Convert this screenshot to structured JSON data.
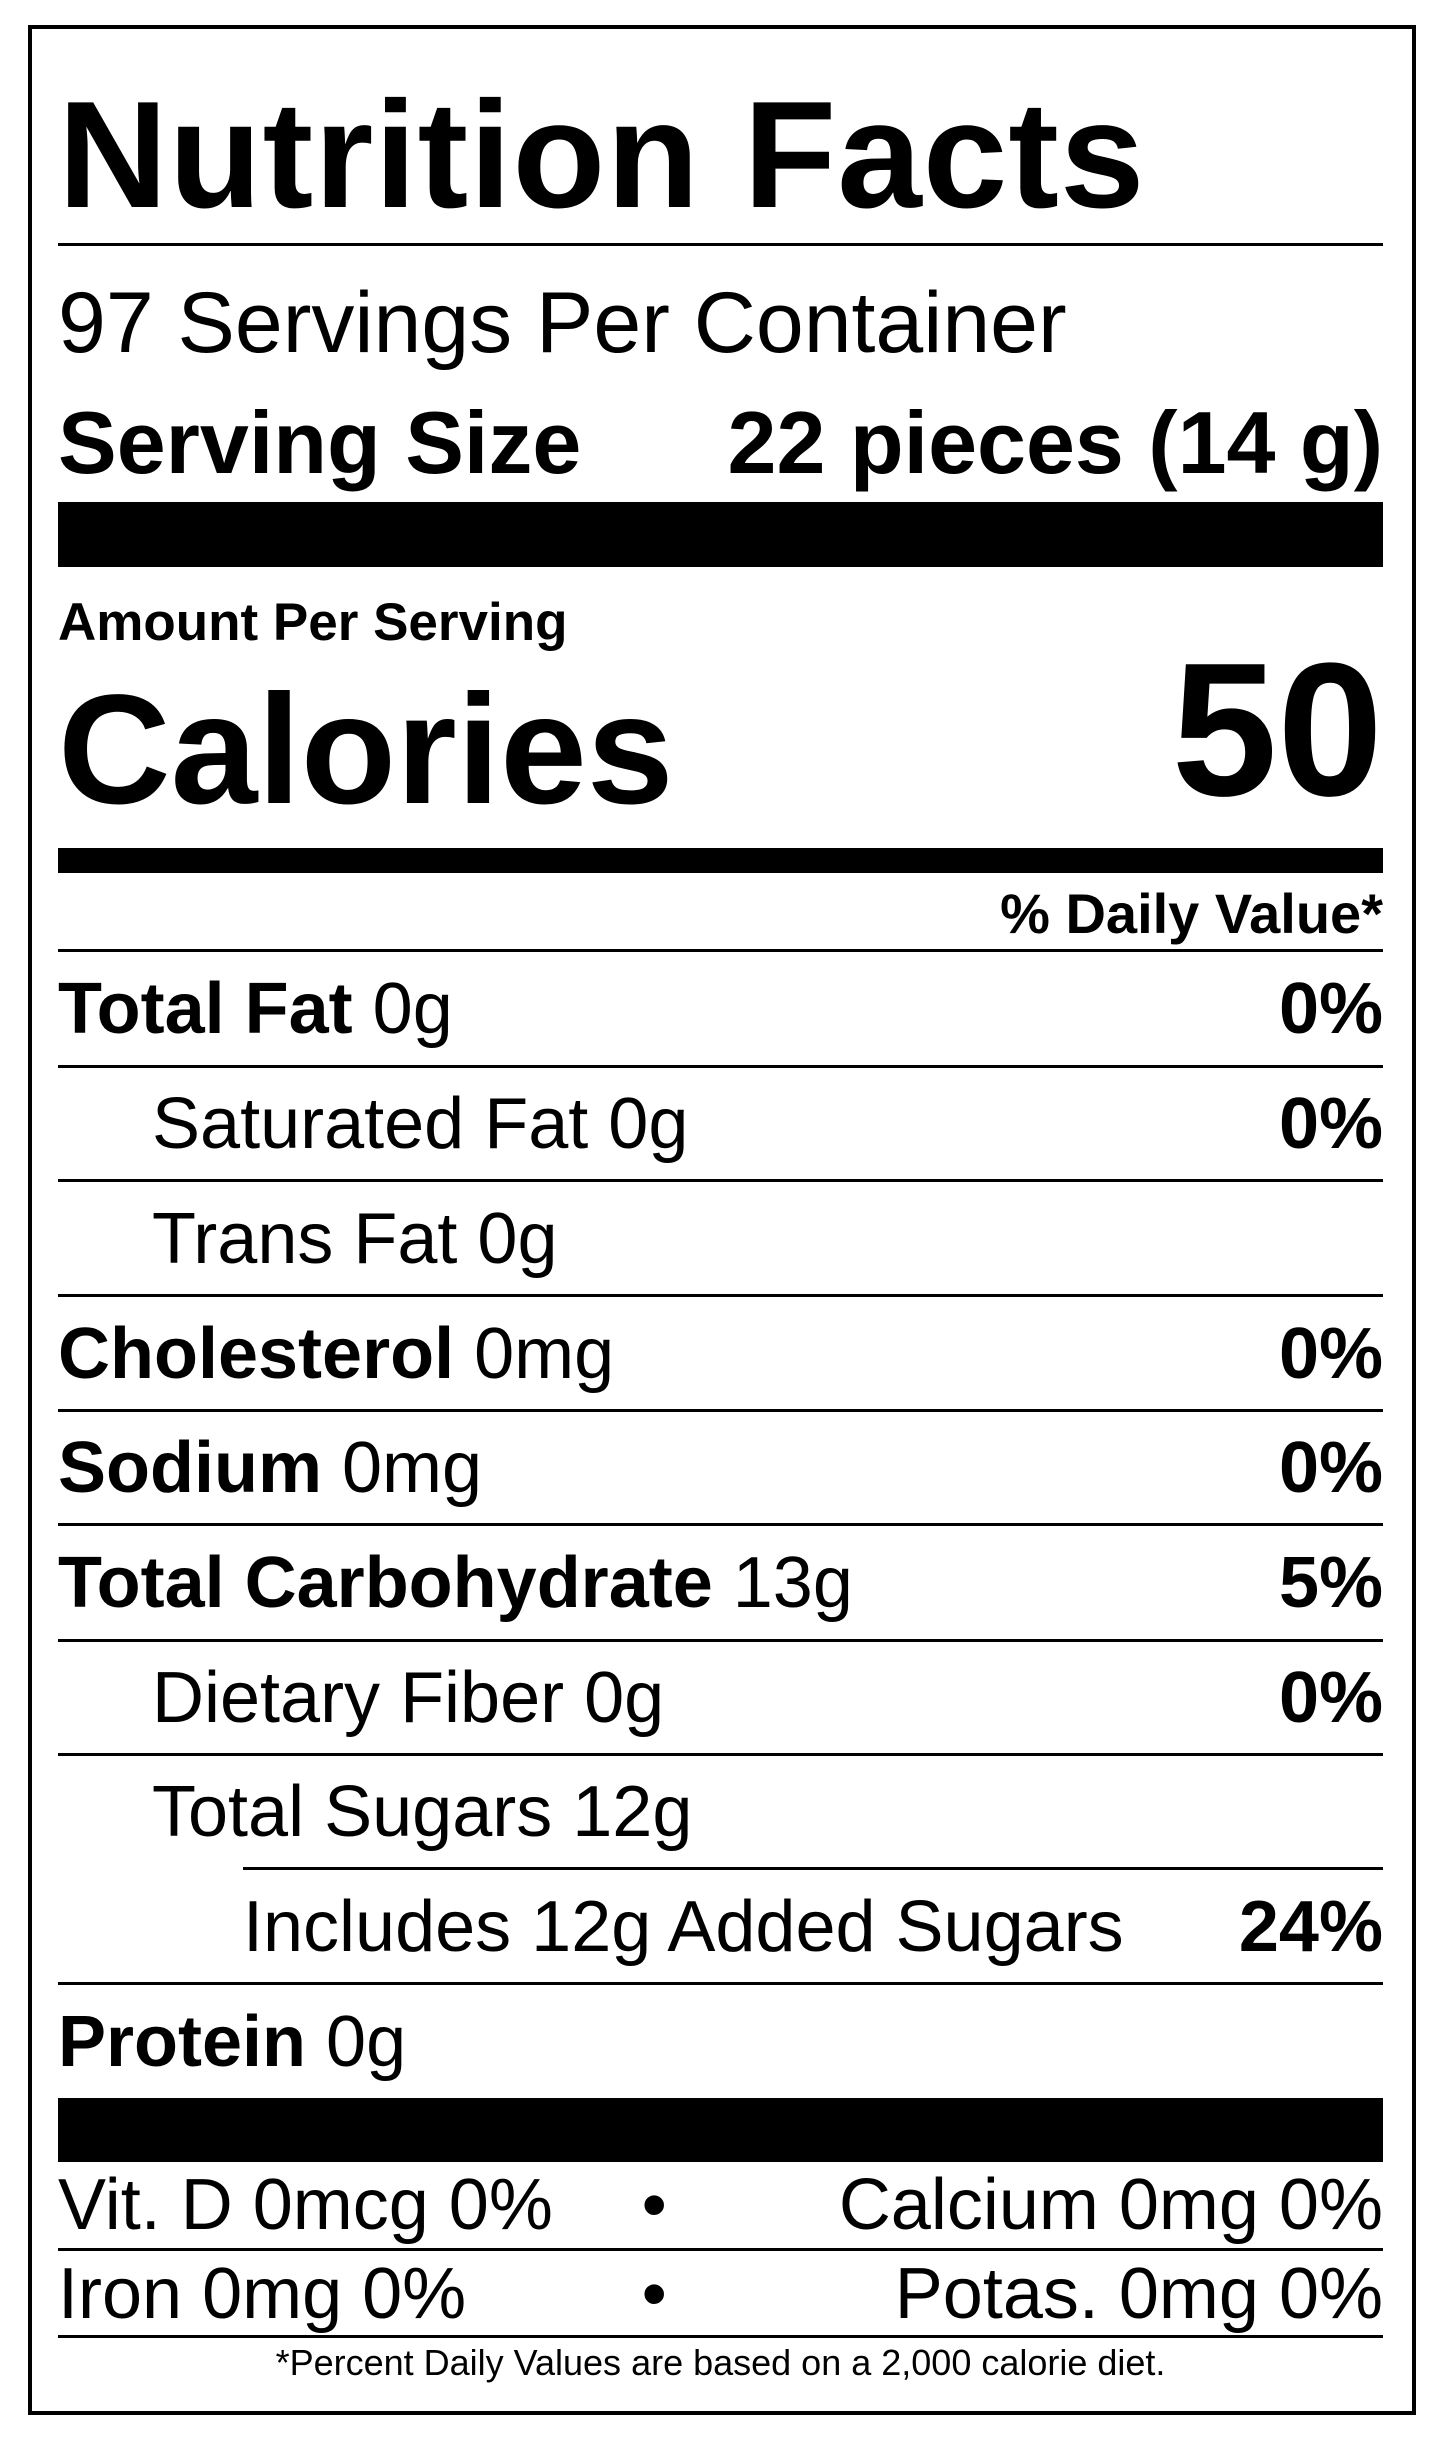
{
  "title": "Nutrition Facts",
  "servings_per_container": "97 Servings Per Container",
  "serving_size": {
    "label": "Serving Size",
    "value": "22 pieces (14 g)"
  },
  "amount_per_serving": "Amount Per Serving",
  "calories": {
    "label": "Calories",
    "value": "50"
  },
  "daily_value_header": "% Daily Value*",
  "nutrients": [
    {
      "name": "Total Fat",
      "amount": "0g",
      "dv": "0%"
    },
    {
      "name": "Saturated Fat",
      "amount": "0g",
      "dv": "0%"
    },
    {
      "name": "Trans Fat",
      "amount": "0g",
      "dv": ""
    },
    {
      "name": "Cholesterol",
      "amount": "0mg",
      "dv": "0%"
    },
    {
      "name": "Sodium",
      "amount": "0mg",
      "dv": "0%"
    },
    {
      "name": "Total Carbohydrate",
      "amount": "13g",
      "dv": "5%"
    },
    {
      "name": "Dietary Fiber",
      "amount": "0g",
      "dv": "0%"
    },
    {
      "name": "Total Sugars",
      "amount": "12g",
      "dv": ""
    },
    {
      "name": "Includes 12g Added Sugars",
      "amount": "",
      "dv": "24%"
    },
    {
      "name": "Protein",
      "amount": "0g",
      "dv": ""
    }
  ],
  "vitamins": [
    {
      "left": "Vit. D 0mcg 0%",
      "separator": "•",
      "right": "Calcium 0mg 0%"
    },
    {
      "left": "Iron 0mg 0%",
      "separator": "•",
      "right": "Potas. 0mg 0%"
    }
  ],
  "footnote": "*Percent Daily Values are based on a 2,000 calorie diet."
}
